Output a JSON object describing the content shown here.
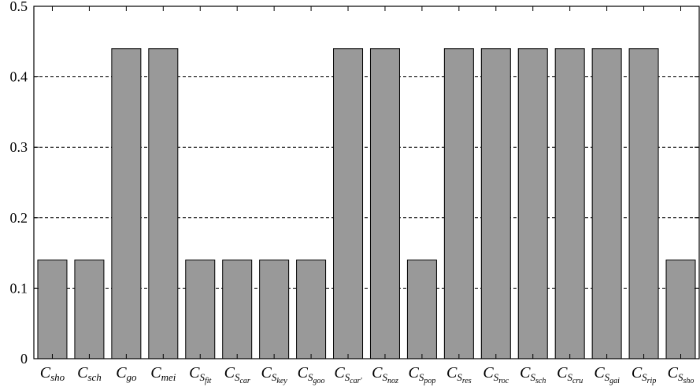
{
  "chart_data": {
    "type": "bar",
    "title": "",
    "xlabel": "",
    "ylabel": "",
    "ylim": [
      0,
      0.5
    ],
    "y_ticks": [
      "0",
      "0.1",
      "0.2",
      "0.3",
      "0.4",
      "0.5"
    ],
    "grid": "horizontal dashed",
    "bar_color": "#999999",
    "categories": [
      {
        "main": "C",
        "sub": "sho",
        "subsub": ""
      },
      {
        "main": "C",
        "sub": "sch",
        "subsub": ""
      },
      {
        "main": "C",
        "sub": "go",
        "subsub": ""
      },
      {
        "main": "C",
        "sub": "mei",
        "subsub": ""
      },
      {
        "main": "C",
        "sub": "S",
        "subsub": "fit"
      },
      {
        "main": "C",
        "sub": "S",
        "subsub": "car"
      },
      {
        "main": "C",
        "sub": "S",
        "subsub": "key"
      },
      {
        "main": "C",
        "sub": "S",
        "subsub": "goo"
      },
      {
        "main": "C",
        "sub": "S",
        "subsub": "car'"
      },
      {
        "main": "C",
        "sub": "S",
        "subsub": "noz"
      },
      {
        "main": "C",
        "sub": "S",
        "subsub": "pop"
      },
      {
        "main": "C",
        "sub": "S",
        "subsub": "res"
      },
      {
        "main": "C",
        "sub": "S",
        "subsub": "roc"
      },
      {
        "main": "C",
        "sub": "S",
        "subsub": "sch"
      },
      {
        "main": "C",
        "sub": "S",
        "subsub": "cru"
      },
      {
        "main": "C",
        "sub": "S",
        "subsub": "gai"
      },
      {
        "main": "C",
        "sub": "S",
        "subsub": "rip"
      },
      {
        "main": "C",
        "sub": "S",
        "subsub": "sho"
      }
    ],
    "values": [
      0.14,
      0.14,
      0.44,
      0.44,
      0.14,
      0.14,
      0.14,
      0.14,
      0.44,
      0.44,
      0.14,
      0.44,
      0.44,
      0.44,
      0.44,
      0.44,
      0.44,
      0.14
    ]
  }
}
